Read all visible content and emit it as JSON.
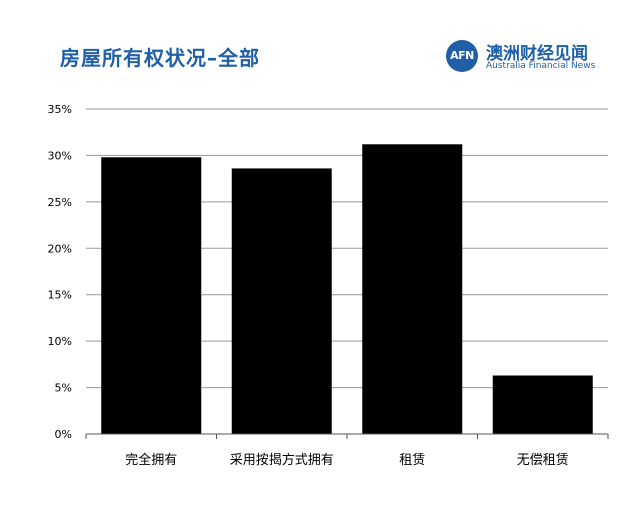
{
  "title": "房屋所有权状况–全部",
  "brand": {
    "logo_text": "AFN",
    "name": "澳洲财经见闻",
    "subtitle": "Australia Financial News",
    "color": "#1f5fa8"
  },
  "chart_data": {
    "type": "bar",
    "title": "房屋所有权状况–全部",
    "categories": [
      "完全拥有",
      "采用按揭方式拥有",
      "租赁",
      "无偿租赁"
    ],
    "values": [
      29.8,
      28.6,
      31.2,
      6.3
    ],
    "ylim": [
      0,
      35
    ],
    "yticks": [
      0,
      5,
      10,
      15,
      20,
      25,
      30,
      35
    ],
    "ytick_labels": [
      "0%",
      "5%",
      "10%",
      "15%",
      "20%",
      "25%",
      "30%",
      "35%"
    ],
    "grid": true,
    "bar_color": "#000000",
    "grid_color": "#9a9a9a"
  }
}
